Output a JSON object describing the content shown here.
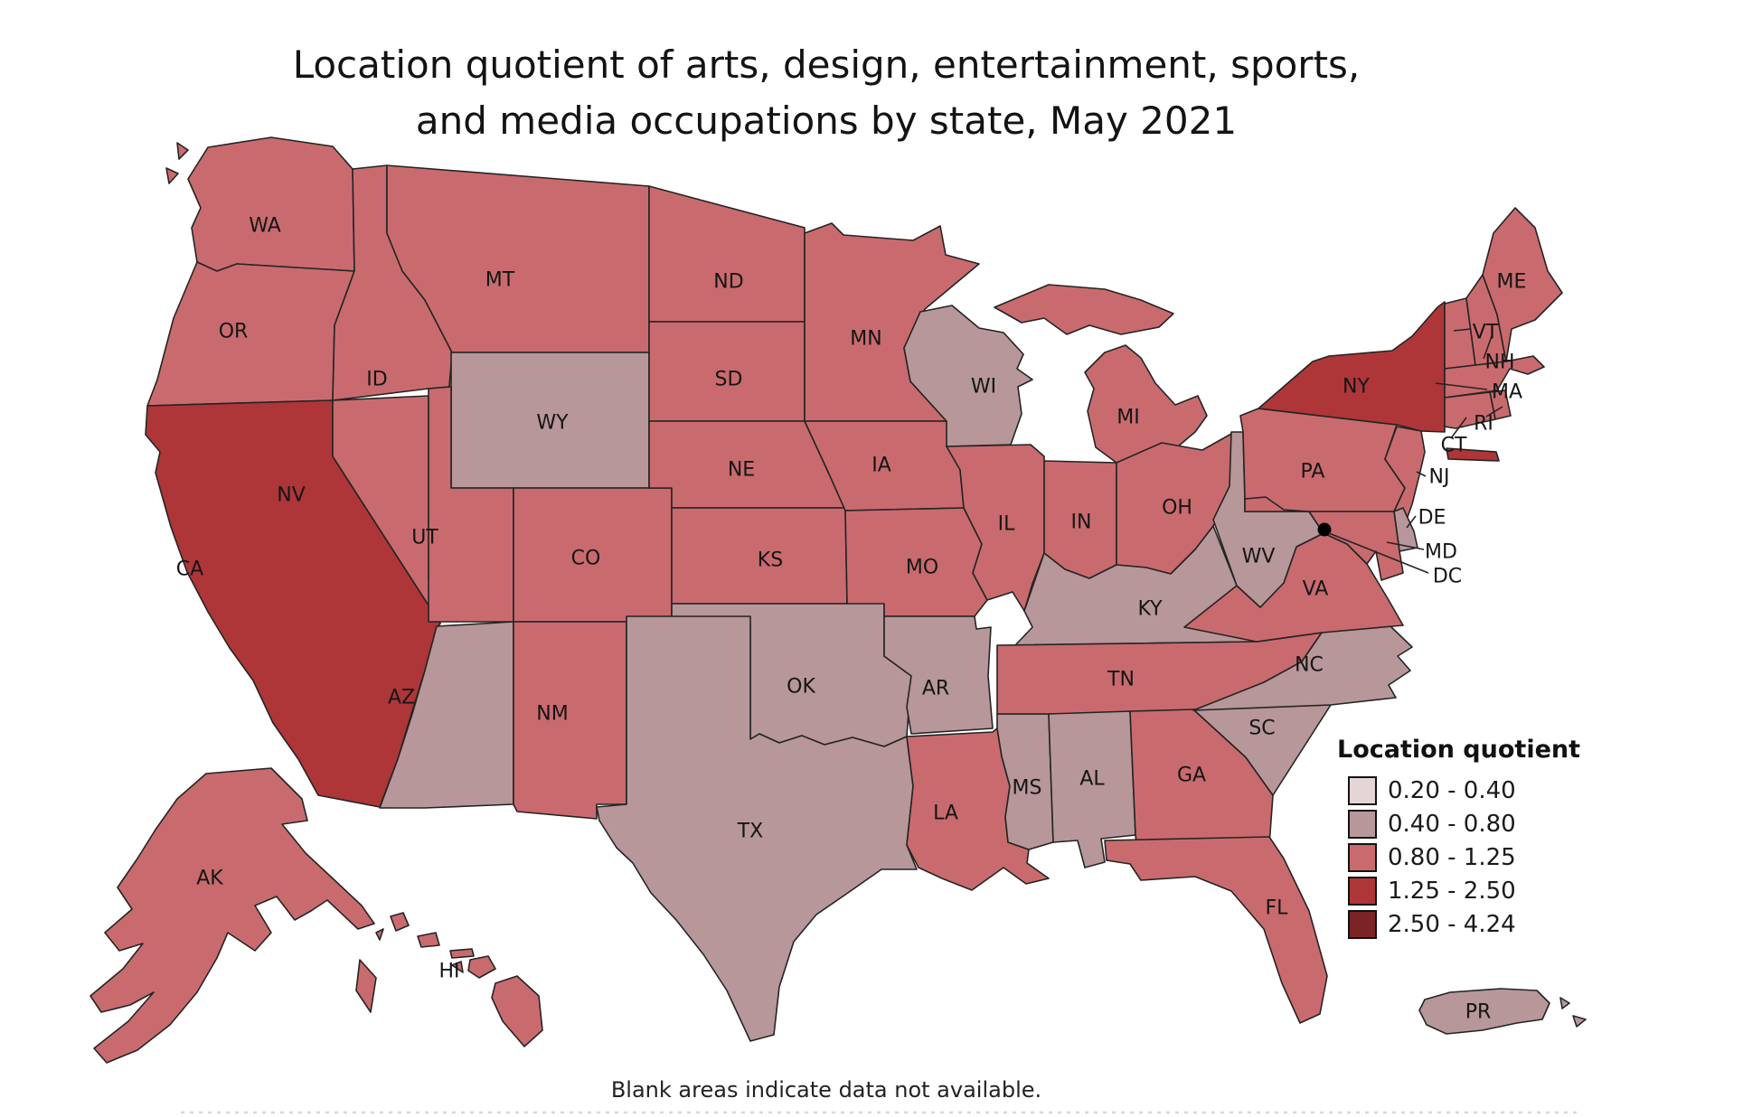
{
  "title": {
    "line1": "Location quotient of arts, design, entertainment, sports,",
    "line2": "and media occupations by state, May 2021"
  },
  "footnote": "Blank areas indicate data not available.",
  "legend": {
    "title": "Location quotient",
    "items": [
      {
        "range": "0.20 - 0.40",
        "color": "#e5d5d7"
      },
      {
        "range": "0.40 - 0.80",
        "color": "#b7979a"
      },
      {
        "range": "0.80 - 1.25",
        "color": "#c96b6e"
      },
      {
        "range": "1.25 - 2.50",
        "color": "#ae3638"
      },
      {
        "range": "2.50 - 4.24",
        "color": "#7c2425"
      }
    ]
  },
  "map": {
    "type": "choropleth",
    "region": "United States",
    "dc_marker_color": "#000000",
    "states": [
      {
        "code": "WA",
        "bucket": 2
      },
      {
        "code": "OR",
        "bucket": 2
      },
      {
        "code": "CA",
        "bucket": 3
      },
      {
        "code": "NV",
        "bucket": 2
      },
      {
        "code": "ID",
        "bucket": 2
      },
      {
        "code": "MT",
        "bucket": 2
      },
      {
        "code": "WY",
        "bucket": 1
      },
      {
        "code": "UT",
        "bucket": 2
      },
      {
        "code": "CO",
        "bucket": 2
      },
      {
        "code": "AZ",
        "bucket": 1
      },
      {
        "code": "NM",
        "bucket": 2
      },
      {
        "code": "ND",
        "bucket": 2
      },
      {
        "code": "SD",
        "bucket": 2
      },
      {
        "code": "NE",
        "bucket": 2
      },
      {
        "code": "KS",
        "bucket": 2
      },
      {
        "code": "OK",
        "bucket": 1
      },
      {
        "code": "TX",
        "bucket": 1
      },
      {
        "code": "MN",
        "bucket": 2
      },
      {
        "code": "IA",
        "bucket": 2
      },
      {
        "code": "MO",
        "bucket": 2
      },
      {
        "code": "AR",
        "bucket": 1
      },
      {
        "code": "LA",
        "bucket": 2
      },
      {
        "code": "WI",
        "bucket": 1
      },
      {
        "code": "IL",
        "bucket": 2
      },
      {
        "code": "MS",
        "bucket": 1
      },
      {
        "code": "MI",
        "bucket": 2
      },
      {
        "code": "IN",
        "bucket": 2
      },
      {
        "code": "OH",
        "bucket": 2
      },
      {
        "code": "KY",
        "bucket": 1
      },
      {
        "code": "TN",
        "bucket": 2
      },
      {
        "code": "AL",
        "bucket": 1
      },
      {
        "code": "GA",
        "bucket": 2
      },
      {
        "code": "FL",
        "bucket": 2
      },
      {
        "code": "SC",
        "bucket": 1
      },
      {
        "code": "NC",
        "bucket": 1
      },
      {
        "code": "VA",
        "bucket": 2
      },
      {
        "code": "WV",
        "bucket": 1
      },
      {
        "code": "PA",
        "bucket": 2
      },
      {
        "code": "NY",
        "bucket": 3
      },
      {
        "code": "NJ",
        "bucket": 2
      },
      {
        "code": "DE",
        "bucket": 1
      },
      {
        "code": "MD",
        "bucket": 2
      },
      {
        "code": "DC",
        "bucket": 4
      },
      {
        "code": "VT",
        "bucket": 2
      },
      {
        "code": "NH",
        "bucket": 2
      },
      {
        "code": "ME",
        "bucket": 2
      },
      {
        "code": "MA",
        "bucket": 2
      },
      {
        "code": "RI",
        "bucket": 2
      },
      {
        "code": "CT",
        "bucket": 2
      },
      {
        "code": "AK",
        "bucket": 2
      },
      {
        "code": "HI",
        "bucket": 2
      },
      {
        "code": "PR",
        "bucket": 1
      }
    ]
  }
}
